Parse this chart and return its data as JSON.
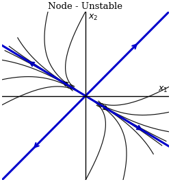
{
  "title": "Node - Unstable",
  "xlabel": "$x_1$",
  "ylabel": "$x_2$",
  "xlim": [
    -3.2,
    3.2
  ],
  "ylim": [
    -3.2,
    3.2
  ],
  "eigenline1_slope": 1.0,
  "eigenline2_slope": -0.6,
  "eigenline1_color": "#0000cc",
  "eigenline2_color": "#0000cc",
  "trajectory_color": "#111111",
  "axis_color": "#000000",
  "background_color": "#ffffff",
  "lam1": 1.0,
  "lam2": 3.0,
  "figsize": [
    2.5,
    2.65
  ],
  "dpi": 100
}
